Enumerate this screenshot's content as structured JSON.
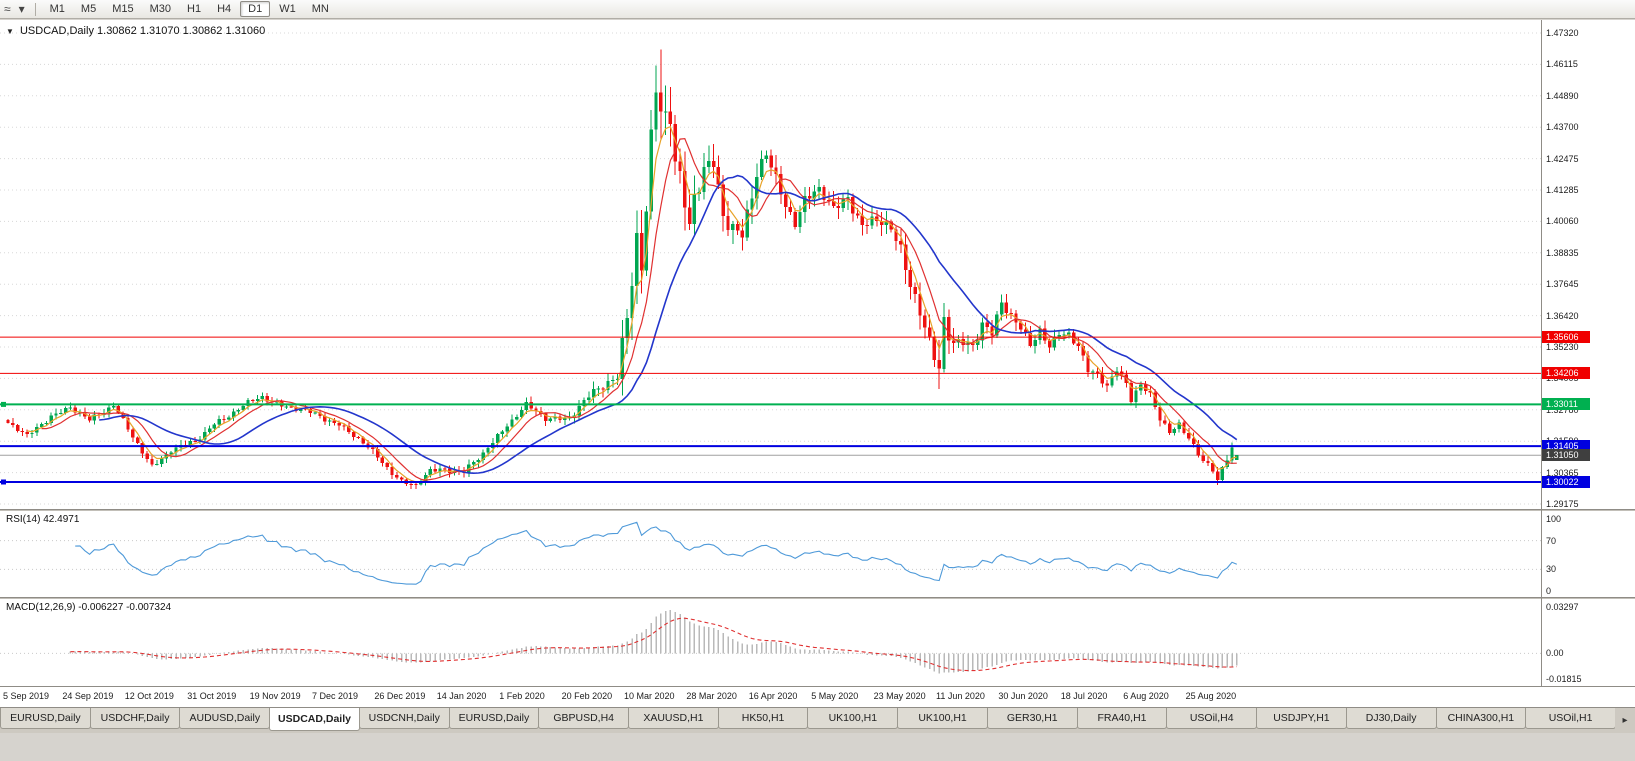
{
  "toolbar": {
    "icons": [
      {
        "name": "polyline-tool-icon",
        "glyph": "≈"
      },
      {
        "name": "dropdown-arrow-icon",
        "glyph": "▾"
      }
    ],
    "timeframes": [
      "M1",
      "M5",
      "M15",
      "M30",
      "H1",
      "H4",
      "D1",
      "W1",
      "MN"
    ],
    "active_timeframe": "D1"
  },
  "chart": {
    "title_icon": "▼",
    "symbol": "USDCAD,Daily",
    "ohlc_text": "1.30862 1.31070 1.30862 1.31060"
  },
  "rsi_panel": {
    "name": "RSI(14)",
    "value": "42.4971",
    "axis_ticks": [
      "100",
      "70",
      "30",
      "0"
    ]
  },
  "macd_panel": {
    "name": "MACD(12,26,9)",
    "values": "-0.006227 -0.007324",
    "axis_ticks": [
      "0.03297",
      "0.00",
      "-0.01815"
    ]
  },
  "tab_bar": {
    "tabs": [
      "EURUSD,Daily",
      "USDCHF,Daily",
      "AUDUSD,Daily",
      "USDCAD,Daily",
      "USDCNH,Daily",
      "EURUSD,Daily",
      "GBPUSD,H4",
      "XAUUSD,H1",
      "HK50,H1",
      "UK100,H1",
      "UK100,H1",
      "GER30,H1",
      "FRA40,H1",
      "USOil,H4",
      "USDJPY,H1",
      "DJ30,Daily",
      "CHINA300,H1",
      "USOil,H1"
    ],
    "active_index": 3,
    "scroll_right_glyph": "▸"
  },
  "chart_data": {
    "type": "candlestick",
    "symbol": "USDCAD",
    "period": "Daily",
    "current_bar": {
      "open": 1.30862,
      "high": 1.3107,
      "low": 1.30862,
      "close": 1.3106
    },
    "current_bid": 1.3105,
    "current_bid_label": "1.31050",
    "y_axis_ticks": [
      "1.47320",
      "1.46115",
      "1.44890",
      "1.43700",
      "1.42475",
      "1.41285",
      "1.40060",
      "1.38835",
      "1.37645",
      "1.36420",
      "1.35230",
      "1.34005",
      "1.32780",
      "1.31590",
      "1.30365",
      "1.29175"
    ],
    "price_max": 1.4732,
    "price_min": 1.29175,
    "x_axis_dates": [
      "5 Sep 2019",
      "24 Sep 2019",
      "12 Oct 2019",
      "31 Oct 2019",
      "19 Nov 2019",
      "7 Dec 2019",
      "26 Dec 2019",
      "14 Jan 2020",
      "1 Feb 2020",
      "20 Feb 2020",
      "10 Mar 2020",
      "28 Mar 2020",
      "16 Apr 2020",
      "5 May 2020",
      "23 May 2020",
      "11 Jun 2020",
      "30 Jun 2020",
      "18 Jul 2020",
      "6 Aug 2020",
      "25 Aug 2020"
    ],
    "bars_per_date_label": 13,
    "num_candles": 257,
    "colors": {
      "up": "#00a651",
      "down": "#ee1111",
      "ma_fast": "#e8a328",
      "ma_mid": "#e03131",
      "ma_slow": "#2336cc",
      "rsi": "#4f9ad9",
      "macd_hist": "#b9b9b9",
      "macd_signal": "#e03131",
      "grid": "#d8d8d8",
      "bid_line": "#a0a0a0",
      "bid_badge_bg": "#3f3f3f"
    },
    "horizontal_levels": [
      {
        "price": 1.35606,
        "label": "1.35606",
        "color": "#f00000",
        "width": 1,
        "handle": false
      },
      {
        "price": 1.34206,
        "label": "1.34206",
        "color": "#f00000",
        "width": 1,
        "handle": false
      },
      {
        "price": 1.33011,
        "label": "1.33011",
        "color": "#00b050",
        "width": 2,
        "handle": true
      },
      {
        "price": 1.31405,
        "label": "1.31405",
        "color": "#0000e0",
        "width": 2,
        "handle": false
      },
      {
        "price": 1.30022,
        "label": "1.30022",
        "color": "#0000e0",
        "width": 2,
        "handle": true
      }
    ],
    "moving_averages": [
      {
        "name": "MA fast",
        "period": 4,
        "method": "ema",
        "color": "#e8a328"
      },
      {
        "name": "MA medium",
        "period": 8,
        "method": "sma",
        "color": "#e03131"
      },
      {
        "name": "MA slow",
        "period": 20,
        "method": "sma",
        "color": "#2336cc"
      }
    ],
    "rsi": {
      "period": 14,
      "current": 42.4971,
      "range": [
        0,
        100
      ],
      "guide_levels": [
        70,
        30
      ]
    },
    "macd": {
      "fast": 12,
      "slow": 26,
      "signal_period": 9,
      "current_main": -0.006227,
      "current_signal": -0.007324,
      "range_max": 0.03297,
      "range_min": -0.01815
    },
    "price_path_anchors": [
      [
        0,
        1.323
      ],
      [
        4,
        1.3175
      ],
      [
        9,
        1.3262
      ],
      [
        13,
        1.3285
      ],
      [
        17,
        1.324
      ],
      [
        22,
        1.3305
      ],
      [
        26,
        1.317
      ],
      [
        30,
        1.3062
      ],
      [
        34,
        1.313
      ],
      [
        39,
        1.3152
      ],
      [
        43,
        1.323
      ],
      [
        48,
        1.3282
      ],
      [
        53,
        1.333
      ],
      [
        57,
        1.3302
      ],
      [
        61,
        1.3278
      ],
      [
        65,
        1.3255
      ],
      [
        69,
        1.3228
      ],
      [
        73,
        1.3165
      ],
      [
        78,
        1.3082
      ],
      [
        82,
        1.3005
      ],
      [
        85,
        1.2985
      ],
      [
        88,
        1.3042
      ],
      [
        91,
        1.3058
      ],
      [
        95,
        1.304
      ],
      [
        99,
        1.3108
      ],
      [
        104,
        1.3228
      ],
      [
        108,
        1.3295
      ],
      [
        112,
        1.3245
      ],
      [
        117,
        1.3255
      ],
      [
        121,
        1.3325
      ],
      [
        125,
        1.3388
      ],
      [
        127,
        1.3422
      ],
      [
        129,
        1.366
      ],
      [
        131,
        1.3935
      ],
      [
        132,
        1.382
      ],
      [
        133,
        1.4015
      ],
      [
        134,
        1.4265
      ],
      [
        135,
        1.4498
      ],
      [
        136,
        1.444
      ],
      [
        137,
        1.4425
      ],
      [
        138,
        1.4455
      ],
      [
        139,
        1.4262
      ],
      [
        140,
        1.4185
      ],
      [
        141,
        1.4092
      ],
      [
        142,
        1.3992
      ],
      [
        143,
        1.4095
      ],
      [
        145,
        1.4185
      ],
      [
        147,
        1.4215
      ],
      [
        149,
        1.4035
      ],
      [
        151,
        1.4005
      ],
      [
        153,
        1.3962
      ],
      [
        155,
        1.4092
      ],
      [
        156,
        1.4185
      ],
      [
        158,
        1.4255
      ],
      [
        160,
        1.4162
      ],
      [
        162,
        1.4085
      ],
      [
        164,
        1.4015
      ],
      [
        166,
        1.4082
      ],
      [
        169,
        1.4122
      ],
      [
        172,
        1.4052
      ],
      [
        175,
        1.4112
      ],
      [
        178,
        1.3985
      ],
      [
        182,
        1.4002
      ],
      [
        184,
        1.3982
      ],
      [
        186,
        1.3905
      ],
      [
        188,
        1.3782
      ],
      [
        190,
        1.3662
      ],
      [
        192,
        1.3502
      ],
      [
        194,
        1.3425
      ],
      [
        195,
        1.3622
      ],
      [
        197,
        1.3545
      ],
      [
        199,
        1.3552
      ],
      [
        201,
        1.3532
      ],
      [
        203,
        1.3602
      ],
      [
        205,
        1.3562
      ],
      [
        207,
        1.3692
      ],
      [
        209,
        1.3652
      ],
      [
        211,
        1.3602
      ],
      [
        213,
        1.3532
      ],
      [
        215,
        1.3582
      ],
      [
        217,
        1.3512
      ],
      [
        219,
        1.3572
      ],
      [
        221,
        1.3582
      ],
      [
        223,
        1.3532
      ],
      [
        225,
        1.3432
      ],
      [
        227,
        1.3412
      ],
      [
        229,
        1.3362
      ],
      [
        231,
        1.3432
      ],
      [
        233,
        1.3392
      ],
      [
        234,
        1.3332
      ],
      [
        236,
        1.3382
      ],
      [
        238,
        1.3332
      ],
      [
        240,
        1.3242
      ],
      [
        242,
        1.3192
      ],
      [
        244,
        1.3222
      ],
      [
        246,
        1.3182
      ],
      [
        247,
        1.3152
      ],
      [
        249,
        1.3082
      ],
      [
        251,
        1.3042
      ],
      [
        252,
        1.3002
      ],
      [
        253,
        1.3052
      ],
      [
        254,
        1.3092
      ],
      [
        255,
        1.3132
      ],
      [
        256,
        1.3106
      ]
    ],
    "volatility_anchors": [
      [
        0,
        0.0032
      ],
      [
        100,
        0.0034
      ],
      [
        120,
        0.004
      ],
      [
        126,
        0.007
      ],
      [
        129,
        0.015
      ],
      [
        133,
        0.019
      ],
      [
        136,
        0.021
      ],
      [
        140,
        0.016
      ],
      [
        145,
        0.012
      ],
      [
        152,
        0.01
      ],
      [
        160,
        0.0085
      ],
      [
        170,
        0.007
      ],
      [
        182,
        0.0075
      ],
      [
        188,
        0.0095
      ],
      [
        192,
        0.013
      ],
      [
        195,
        0.013
      ],
      [
        198,
        0.008
      ],
      [
        205,
        0.006
      ],
      [
        215,
        0.005
      ],
      [
        225,
        0.0048
      ],
      [
        235,
        0.0045
      ],
      [
        245,
        0.004
      ],
      [
        256,
        0.0035
      ]
    ],
    "extreme_overrides": [
      {
        "day": 136,
        "type": "high",
        "price": 1.4668
      },
      {
        "day": 85,
        "type": "low",
        "price": 1.2976
      },
      {
        "day": 194,
        "type": "low",
        "price": 1.338
      },
      {
        "day": 252,
        "type": "low",
        "price": 1.299
      }
    ]
  }
}
